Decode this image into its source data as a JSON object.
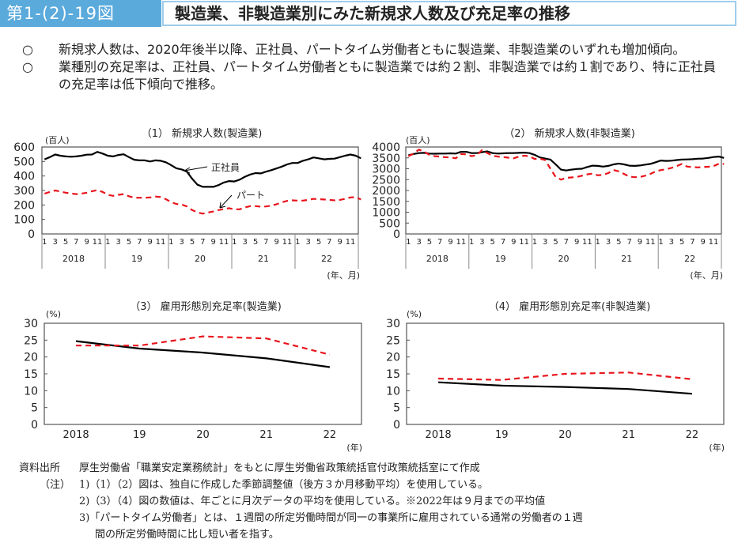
{
  "header": {
    "figure_number": "第1-(2)-19図",
    "title": "製造業、非製造業別にみた新規求人数及び充足率の推移"
  },
  "summary": [
    {
      "bullet": "○",
      "text": "新規求人数は、2020年後半以降、正社員、パートタイム労働者ともに製造業、非製造業のいずれも増加傾向。"
    },
    {
      "bullet": "○",
      "text": "業種別の充足率は、正社員、パートタイム労働者ともに製造業では約２割、非製造業では約１割であり、特に正社員の充足率は低下傾向で推移。"
    }
  ],
  "colors": {
    "fulltime": "#000000",
    "parttime": "#e8141c",
    "header_blue": "#5aaadc",
    "header_border": "#9fcdeb"
  },
  "chart_data": [
    {
      "type": "line",
      "title": "（1） 新規求人数(製造業)",
      "ylabel": "(百人)",
      "xlabel": "(年、月)",
      "ylim": [
        0,
        600
      ],
      "yticks": [
        0,
        100,
        200,
        300,
        400,
        500,
        600
      ],
      "month_ticks": [
        "1",
        "3",
        "5",
        "7",
        "9",
        "11"
      ],
      "years": [
        "2018",
        "19",
        "20",
        "21",
        "22"
      ],
      "annotations": {
        "fulltime": "正社員",
        "parttime": "パート"
      },
      "series": [
        {
          "name": "正社員",
          "style": "solid",
          "values": [
            515,
            530,
            548,
            540,
            535,
            533,
            535,
            540,
            547,
            548,
            566,
            555,
            540,
            535,
            545,
            550,
            530,
            512,
            508,
            508,
            500,
            508,
            505,
            495,
            475,
            453,
            445,
            430,
            380,
            340,
            325,
            325,
            325,
            337,
            355,
            365,
            362,
            375,
            395,
            410,
            420,
            418,
            430,
            440,
            452,
            465,
            480,
            490,
            490,
            505,
            515,
            528,
            522,
            515,
            518,
            520,
            530,
            540,
            548,
            540,
            522
          ]
        },
        {
          "name": "パート",
          "style": "dashed",
          "values": [
            278,
            290,
            300,
            293,
            285,
            280,
            275,
            278,
            285,
            295,
            302,
            290,
            270,
            263,
            270,
            275,
            260,
            250,
            250,
            250,
            252,
            258,
            255,
            240,
            220,
            207,
            203,
            190,
            165,
            148,
            140,
            148,
            155,
            165,
            172,
            178,
            170,
            170,
            183,
            192,
            192,
            188,
            190,
            195,
            205,
            218,
            228,
            232,
            230,
            230,
            235,
            242,
            240,
            238,
            235,
            232,
            235,
            242,
            252,
            255,
            238
          ]
        }
      ]
    },
    {
      "type": "line",
      "title": "（2） 新規求人数(非製造業)",
      "ylabel": "(百人)",
      "xlabel": "(年、月)",
      "ylim": [
        0,
        4000
      ],
      "yticks": [
        0,
        500,
        1000,
        1500,
        2000,
        2500,
        3000,
        3500,
        4000
      ],
      "month_ticks": [
        "1",
        "3",
        "5",
        "7",
        "9",
        "11"
      ],
      "years": [
        "2018",
        "19",
        "20",
        "21",
        "22"
      ],
      "series": [
        {
          "name": "正社員",
          "style": "solid",
          "values": [
            3620,
            3680,
            3720,
            3730,
            3700,
            3690,
            3700,
            3700,
            3710,
            3700,
            3780,
            3780,
            3720,
            3720,
            3760,
            3800,
            3720,
            3700,
            3710,
            3720,
            3720,
            3730,
            3740,
            3720,
            3640,
            3520,
            3470,
            3420,
            3200,
            2960,
            2920,
            2960,
            2990,
            3000,
            3080,
            3140,
            3130,
            3100,
            3130,
            3200,
            3240,
            3200,
            3140,
            3130,
            3150,
            3190,
            3220,
            3300,
            3380,
            3360,
            3370,
            3400,
            3420,
            3430,
            3440,
            3460,
            3470,
            3500,
            3540,
            3560,
            3500
          ]
        },
        {
          "name": "パート",
          "style": "dashed",
          "values": [
            3580,
            3700,
            3880,
            3790,
            3640,
            3580,
            3560,
            3530,
            3520,
            3480,
            3680,
            3660,
            3580,
            3620,
            3860,
            3720,
            3600,
            3560,
            3540,
            3510,
            3480,
            3560,
            3600,
            3580,
            3450,
            3460,
            3400,
            3000,
            2620,
            2500,
            2580,
            2600,
            2620,
            2680,
            2740,
            2780,
            2700,
            2720,
            2800,
            2940,
            2880,
            2760,
            2640,
            2610,
            2620,
            2680,
            2760,
            2880,
            2940,
            2980,
            3040,
            3120,
            3220,
            3100,
            3080,
            3060,
            3080,
            3090,
            3120,
            3230,
            3220
          ]
        }
      ]
    },
    {
      "type": "line",
      "title": "（3） 雇用形態別充足率(製造業)",
      "ylabel": "(%)",
      "xlabel": "(年)",
      "ylim": [
        0,
        30
      ],
      "yticks": [
        0,
        5,
        10,
        15,
        20,
        25,
        30
      ],
      "categories": [
        "2018",
        "19",
        "20",
        "21",
        "22"
      ],
      "series": [
        {
          "name": "正社員",
          "style": "solid",
          "values": [
            24.7,
            22.5,
            21.3,
            19.6,
            17.0
          ]
        },
        {
          "name": "パート",
          "style": "dashed",
          "values": [
            23.4,
            23.4,
            26.1,
            25.5,
            20.7
          ]
        }
      ]
    },
    {
      "type": "line",
      "title": "（4） 雇用形態別充足率(非製造業)",
      "ylabel": "(%)",
      "xlabel": "(年)",
      "ylim": [
        0,
        30
      ],
      "yticks": [
        0,
        5,
        10,
        15,
        20,
        25,
        30
      ],
      "categories": [
        "2018",
        "19",
        "20",
        "21",
        "22"
      ],
      "series": [
        {
          "name": "正社員",
          "style": "solid",
          "values": [
            12.5,
            11.5,
            11.1,
            10.5,
            9.1
          ]
        },
        {
          "name": "パート",
          "style": "dashed",
          "values": [
            13.6,
            13.2,
            15.0,
            15.4,
            13.4
          ]
        }
      ]
    }
  ],
  "notes": {
    "source_label": "資料出所",
    "source_text": "厚生労働省「職業安定業務統計」をもとに厚生労働省政策統括官付政策統括室にて作成",
    "note_label": "（注）",
    "items": [
      "1)（1）（2）図は、独自に作成した季節調整値（後方３か月移動平均）を使用している。",
      "2)（3）（4）図の数値は、年ごとに月次データの平均を使用している。※2022年は９月までの平均値",
      "3)「パートタイム労働者」とは、１週間の所定労働時間が同一の事業所に雇用されている通常の労働者の１週",
      "間の所定労働時間に比し短い者を指す。"
    ]
  }
}
